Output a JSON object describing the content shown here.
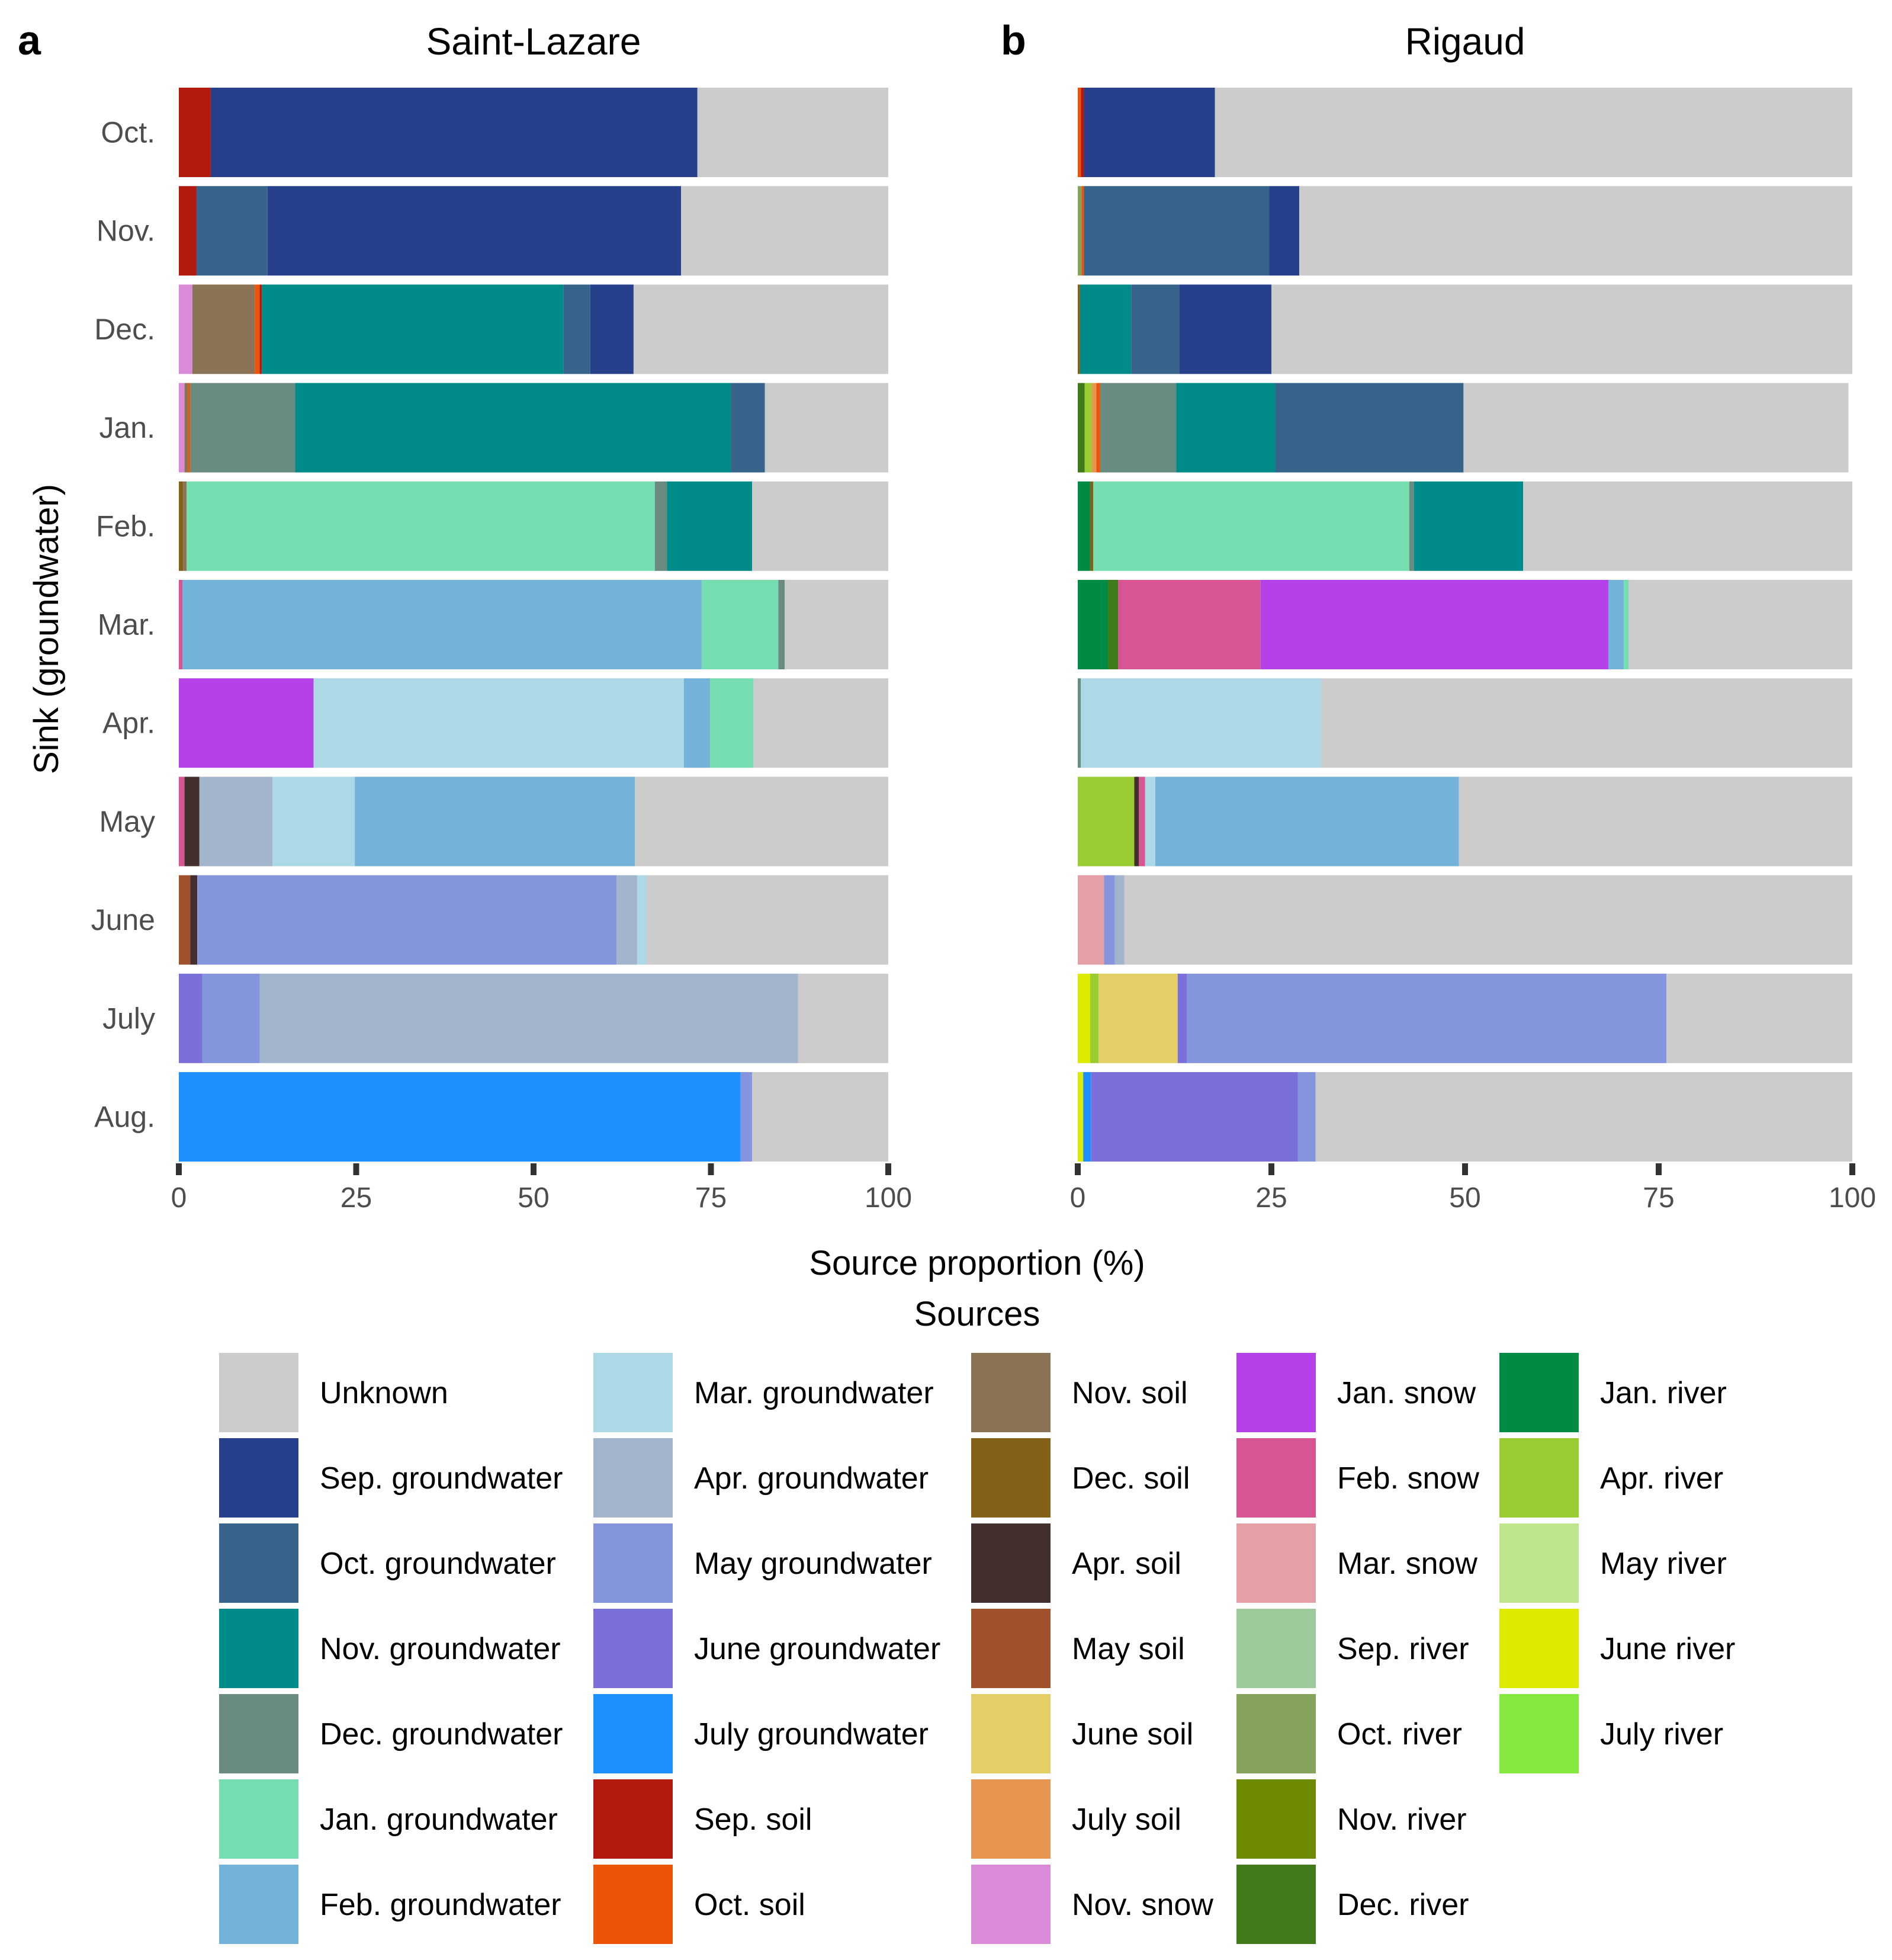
{
  "chart_data": {
    "type": "bar",
    "orientation": "horizontal",
    "stacked": true,
    "xlabel": "Source proportion (%)",
    "ylabel": "Sink (groundwater)",
    "xlim": [
      0,
      100
    ],
    "xticks": [
      0,
      25,
      50,
      75,
      100
    ],
    "legend_title": "Sources",
    "legend_position": "bottom",
    "categories": [
      "Oct.",
      "Nov.",
      "Dec.",
      "Jan.",
      "Feb.",
      "Mar.",
      "Apr.",
      "May",
      "June",
      "July",
      "Aug."
    ],
    "sources": [
      {
        "name": "Unknown",
        "color": "#CCCCCC"
      },
      {
        "name": "Sep. groundwater",
        "color": "#27408B"
      },
      {
        "name": "Oct. groundwater",
        "color": "#36648B"
      },
      {
        "name": "Nov. groundwater",
        "color": "#008B8B"
      },
      {
        "name": "Dec. groundwater",
        "color": "#698B80"
      },
      {
        "name": "Jan. groundwater",
        "color": "#76DDB0"
      },
      {
        "name": "Feb. groundwater",
        "color": "#73B2D9"
      },
      {
        "name": "Mar. groundwater",
        "color": "#ADD8E6"
      },
      {
        "name": "Apr. groundwater",
        "color": "#A2B5CD"
      },
      {
        "name": "May groundwater",
        "color": "#8595DD"
      },
      {
        "name": "June groundwater",
        "color": "#7B6FD9"
      },
      {
        "name": "July groundwater",
        "color": "#1E90FF"
      },
      {
        "name": "Sep. soil",
        "color": "#B2190F"
      },
      {
        "name": "Oct. soil",
        "color": "#EB5409"
      },
      {
        "name": "Nov. soil",
        "color": "#8B7355"
      },
      {
        "name": "Dec. soil",
        "color": "#836217"
      },
      {
        "name": "Apr. soil",
        "color": "#43302E"
      },
      {
        "name": "May soil",
        "color": "#A0522D"
      },
      {
        "name": "June soil",
        "color": "#E4CF66"
      },
      {
        "name": "July soil",
        "color": "#E69650"
      },
      {
        "name": "Nov. snow",
        "color": "#DA8BD7"
      },
      {
        "name": "Jan. snow",
        "color": "#B541E9"
      },
      {
        "name": "Feb. snow",
        "color": "#D85594"
      },
      {
        "name": "Mar. snow",
        "color": "#E59FA6"
      },
      {
        "name": "Sep. river",
        "color": "#9CCC9C"
      },
      {
        "name": "Oct. river",
        "color": "#86A35E"
      },
      {
        "name": "Nov. river",
        "color": "#6E8B00"
      },
      {
        "name": "Dec. river",
        "color": "#3F7A1B"
      },
      {
        "name": "Jan. river",
        "color": "#008B45"
      },
      {
        "name": "Apr. river",
        "color": "#9ACD32"
      },
      {
        "name": "May river",
        "color": "#BFE58D"
      },
      {
        "name": "June river",
        "color": "#DCEB00"
      },
      {
        "name": "July river",
        "color": "#84E840"
      }
    ],
    "panels": [
      {
        "letter": "a",
        "title": "Saint-Lazare",
        "bars": [
          [
            [
              "Sep. soil",
              4.5
            ],
            [
              "Sep. groundwater",
              68.6
            ],
            [
              "Unknown",
              26.9
            ]
          ],
          [
            [
              "Sep. soil",
              2.5
            ],
            [
              "Oct. groundwater",
              10.0
            ],
            [
              "Sep. groundwater",
              58.3
            ],
            [
              "Unknown",
              29.2
            ]
          ],
          [
            [
              "Nov. snow",
              1.9
            ],
            [
              "Nov. soil",
              8.8
            ],
            [
              "Oct. soil",
              0.7
            ],
            [
              "Sep. soil",
              0.3
            ],
            [
              "Nov. groundwater",
              42.5
            ],
            [
              "Oct. groundwater",
              3.8
            ],
            [
              "Sep. groundwater",
              6.1
            ],
            [
              "Unknown",
              35.9
            ]
          ],
          [
            [
              "Nov. snow",
              0.8
            ],
            [
              "Nov. soil",
              0.5
            ],
            [
              "Oct. soil",
              0.3
            ],
            [
              "Dec. groundwater",
              14.8
            ],
            [
              "Nov. groundwater",
              61.4
            ],
            [
              "Oct. groundwater",
              4.8
            ],
            [
              "Unknown",
              17.4
            ]
          ],
          [
            [
              "Dec. soil",
              0.6
            ],
            [
              "Nov. soil",
              0.5
            ],
            [
              "Jan. groundwater",
              66.0
            ],
            [
              "Dec. groundwater",
              1.7
            ],
            [
              "Nov. groundwater",
              12.0
            ],
            [
              "Unknown",
              19.2
            ]
          ],
          [
            [
              "Feb. snow",
              0.5
            ],
            [
              "Feb. groundwater",
              73.2
            ],
            [
              "Jan. groundwater",
              10.8
            ],
            [
              "Dec. groundwater",
              0.9
            ],
            [
              "Unknown",
              14.6
            ]
          ],
          [
            [
              "Jan. snow",
              19.0
            ],
            [
              "Mar. groundwater",
              52.2
            ],
            [
              "Feb. groundwater",
              3.7
            ],
            [
              "Jan. groundwater",
              6.1
            ],
            [
              "Unknown",
              19.0
            ]
          ],
          [
            [
              "Feb. snow",
              0.8
            ],
            [
              "Apr. soil",
              2.1
            ],
            [
              "Apr. groundwater",
              10.3
            ],
            [
              "Mar. groundwater",
              11.6
            ],
            [
              "Feb. groundwater",
              39.5
            ],
            [
              "Unknown",
              35.7
            ]
          ],
          [
            [
              "May soil",
              1.6
            ],
            [
              "Apr. soil",
              1.0
            ],
            [
              "May groundwater",
              59.1
            ],
            [
              "Apr. groundwater",
              2.9
            ],
            [
              "Mar. groundwater",
              1.3
            ],
            [
              "Unknown",
              34.1
            ]
          ],
          [
            [
              "June groundwater",
              3.3
            ],
            [
              "May groundwater",
              8.1
            ],
            [
              "Apr. groundwater",
              75.9
            ],
            [
              "Unknown",
              12.7
            ]
          ],
          [
            [
              "July groundwater",
              79.2
            ],
            [
              "May groundwater",
              1.6
            ],
            [
              "Unknown",
              19.2
            ]
          ]
        ]
      },
      {
        "letter": "b",
        "title": "Rigaud",
        "bars": [
          [
            [
              "Oct. soil",
              0.4
            ],
            [
              "Sep. soil",
              0.4
            ],
            [
              "Sep. groundwater",
              16.9
            ],
            [
              "Unknown",
              82.3
            ]
          ],
          [
            [
              "Oct. river",
              0.5
            ],
            [
              "Oct. soil",
              0.3
            ],
            [
              "Oct. groundwater",
              23.9
            ],
            [
              "Sep. groundwater",
              3.9
            ],
            [
              "Unknown",
              71.4
            ]
          ],
          [
            [
              "Dec. soil",
              0.3
            ],
            [
              "Nov. groundwater",
              6.6
            ],
            [
              "Oct. groundwater",
              6.2
            ],
            [
              "Sep. groundwater",
              11.9
            ],
            [
              "Unknown",
              75.0
            ]
          ],
          [
            [
              "Dec. river",
              0.9
            ],
            [
              "Apr. river",
              0.9
            ],
            [
              "July soil",
              0.6
            ],
            [
              "Oct. soil",
              0.5
            ],
            [
              "Dec. groundwater",
              9.8
            ],
            [
              "Nov. groundwater",
              12.8
            ],
            [
              "Oct. groundwater",
              24.3
            ],
            [
              "Unknown",
              49.7
            ]
          ],
          [
            [
              "Jan. river",
              1.6
            ],
            [
              "Dec. soil",
              0.4
            ],
            [
              "Jan. groundwater",
              40.8
            ],
            [
              "Dec. groundwater",
              0.6
            ],
            [
              "Nov. groundwater",
              14.1
            ],
            [
              "Unknown",
              42.5
            ]
          ],
          [
            [
              "Jan. river",
              3.9
            ],
            [
              "Dec. river",
              1.3
            ],
            [
              "Feb. snow",
              18.4
            ],
            [
              "Jan. snow",
              44.9
            ],
            [
              "Feb. groundwater",
              2.0
            ],
            [
              "Jan. groundwater",
              0.6
            ],
            [
              "Unknown",
              28.9
            ]
          ],
          [
            [
              "Dec. groundwater",
              0.4
            ],
            [
              "Mar. groundwater",
              31.0
            ],
            [
              "Unknown",
              68.6
            ]
          ],
          [
            [
              "Apr. river",
              7.3
            ],
            [
              "Apr. soil",
              0.6
            ],
            [
              "Feb. snow",
              0.8
            ],
            [
              "Mar. groundwater",
              1.3
            ],
            [
              "Feb. groundwater",
              39.2
            ],
            [
              "Unknown",
              50.8
            ]
          ],
          [
            [
              "Mar. snow",
              3.4
            ],
            [
              "May groundwater",
              1.4
            ],
            [
              "Apr. groundwater",
              1.2
            ],
            [
              "Unknown",
              94.0
            ]
          ],
          [
            [
              "June river",
              1.6
            ],
            [
              "Apr. river",
              1.1
            ],
            [
              "June soil",
              10.2
            ],
            [
              "June groundwater",
              1.2
            ],
            [
              "May groundwater",
              61.9
            ],
            [
              "Unknown",
              24.0
            ]
          ],
          [
            [
              "June river",
              0.7
            ],
            [
              "July groundwater",
              1.0
            ],
            [
              "June groundwater",
              26.7
            ],
            [
              "May groundwater",
              2.3
            ],
            [
              "Unknown",
              69.3
            ]
          ]
        ]
      }
    ]
  }
}
